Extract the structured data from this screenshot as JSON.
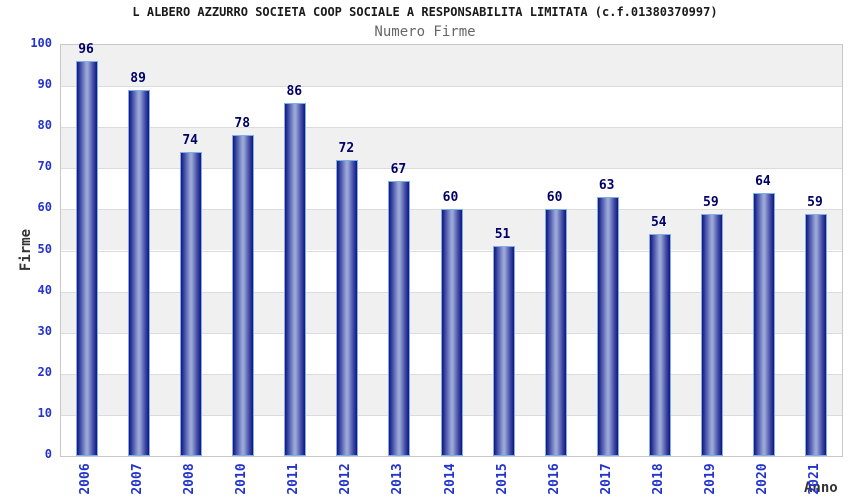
{
  "header": {
    "title": "L ALBERO AZZURRO SOCIETA COOP SOCIALE A RESPONSABILITA LIMITATA (c.f.01380370997)",
    "subtitle": "Numero Firme"
  },
  "chart_data": {
    "type": "bar",
    "title": "L ALBERO AZZURRO SOCIETA COOP SOCIALE A RESPONSABILITA LIMITATA (c.f.01380370997)",
    "subtitle": "Numero Firme",
    "categories": [
      "2006",
      "2007",
      "2008",
      "2010",
      "2011",
      "2012",
      "2013",
      "2014",
      "2015",
      "2016",
      "2017",
      "2018",
      "2019",
      "2020",
      "2021"
    ],
    "values": [
      96,
      89,
      74,
      78,
      86,
      72,
      67,
      60,
      51,
      60,
      63,
      54,
      59,
      64,
      59
    ],
    "xlabel": "Anno",
    "ylabel": "Firme",
    "ylim": [
      0,
      100
    ],
    "ytick_step": 10,
    "yticks": [
      0,
      10,
      20,
      30,
      40,
      50,
      60,
      70,
      80,
      90,
      100
    ],
    "grid": true,
    "legend": false,
    "bar_value_labels": true,
    "alternating_bands": true,
    "colors": {
      "bar_dark": "#15157e",
      "bar_mid": "#3b49a5",
      "bar_light": "#9aa6d6",
      "bar_border": "#7db0e8",
      "value_label": "#000066",
      "tick_label": "#2333cc",
      "axis_title": "#333333",
      "band_gray": "#f0f0f0",
      "grid_line": "#dcdcdc",
      "plot_border": "#c8c8c8",
      "title_color": "#1a1a1a",
      "subtitle_color": "#666666"
    }
  }
}
